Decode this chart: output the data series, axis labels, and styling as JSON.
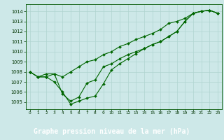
{
  "title": "Graphe pression niveau de la mer (hPa)",
  "plot_bg": "#cde8e8",
  "label_bar_bg": "#006600",
  "label_text_color": "#ffffff",
  "line_color": "#006600",
  "grid_color": "#b0d4d0",
  "x_ticks": [
    0,
    1,
    2,
    3,
    4,
    5,
    6,
    7,
    8,
    9,
    10,
    11,
    12,
    13,
    14,
    15,
    16,
    17,
    18,
    19,
    20,
    21,
    22,
    23
  ],
  "y_ticks": [
    1005,
    1006,
    1007,
    1008,
    1009,
    1010,
    1011,
    1012,
    1013,
    1014
  ],
  "ylim": [
    1004.3,
    1014.7
  ],
  "xlim": [
    -0.5,
    23.5
  ],
  "s1": [
    1008,
    1007.5,
    1007.8,
    1007.8,
    1007.5,
    1008.0,
    1008.5,
    1009.0,
    1009.2,
    1009.7,
    1010.0,
    1010.5,
    1010.8,
    1011.2,
    1011.5,
    1011.8,
    1012.2,
    1012.8,
    1013.0,
    1013.3,
    1013.8,
    1014.0,
    1014.1,
    1013.8
  ],
  "s2": [
    1008,
    1007.5,
    1007.5,
    1007.0,
    1006.0,
    1004.8,
    1005.1,
    1005.4,
    1005.6,
    1006.8,
    1008.2,
    1008.8,
    1009.3,
    1009.8,
    1010.3,
    1010.7,
    1011.0,
    1011.5,
    1012.0,
    1013.0,
    1013.8,
    1014.0,
    1014.1,
    1013.8
  ],
  "s3": [
    1008,
    1007.5,
    1007.5,
    1007.8,
    1005.8,
    1005.1,
    1005.5,
    1006.9,
    1007.2,
    1008.5,
    1008.8,
    1009.3,
    1009.7,
    1010.0,
    1010.3,
    1010.7,
    1011.0,
    1011.5,
    1012.0,
    1013.0,
    1013.8,
    1014.0,
    1014.1,
    1013.8
  ]
}
